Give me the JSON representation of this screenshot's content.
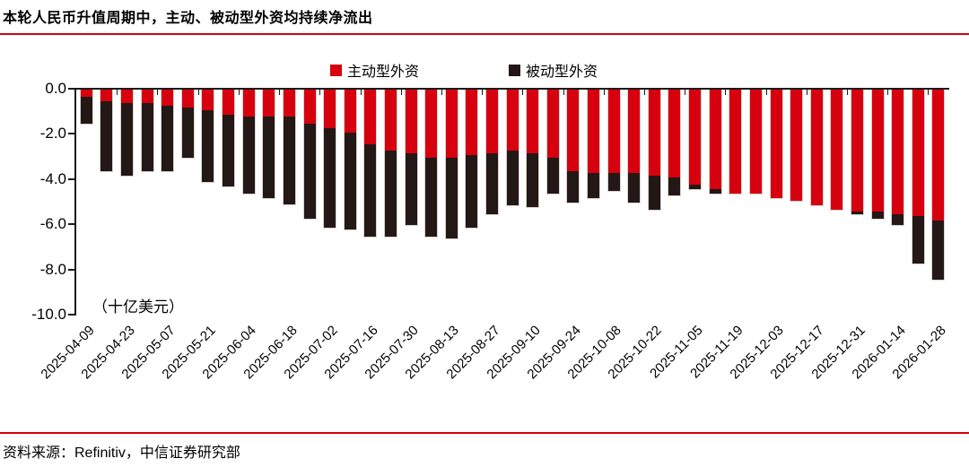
{
  "title": "本轮人民币升值周期中，主动、被动型外资均持续净流出",
  "unit_note": "（十亿美元）",
  "source": "资料来源：Refinitiv，中信证券研究部",
  "accent_color": "#d7000f",
  "legend": [
    {
      "label": "主动型外资",
      "color": "#d7000f"
    },
    {
      "label": "被动型外资",
      "color": "#231815"
    }
  ],
  "chart_data": {
    "type": "bar",
    "stacked": true,
    "title": "本轮人民币升值周期中，主动、被动型外资均持续净流出",
    "ylabel": "（十亿美元）",
    "ylim": [
      -10.0,
      0.0
    ],
    "grid": false,
    "legend_position": "top",
    "ytick_labels": [
      "0.0",
      "-2.0",
      "-4.0",
      "-6.0",
      "-8.0",
      "-10.0"
    ],
    "x": [
      "2025-04-09",
      "2025-04-16",
      "2025-04-23",
      "2025-04-30",
      "2025-05-07",
      "2025-05-14",
      "2025-05-21",
      "2025-05-28",
      "2025-06-04",
      "2025-06-11",
      "2025-06-18",
      "2025-06-25",
      "2025-07-02",
      "2025-07-09",
      "2025-07-16",
      "2025-07-23",
      "2025-07-30",
      "2025-08-06",
      "2025-08-13",
      "2025-08-20",
      "2025-08-27",
      "2025-09-03",
      "2025-09-10",
      "2025-09-17",
      "2025-09-24",
      "2025-10-01",
      "2025-10-08",
      "2025-10-15",
      "2025-10-22",
      "2025-10-29",
      "2025-11-05",
      "2025-11-12",
      "2025-11-19",
      "2025-11-26",
      "2025-12-03",
      "2025-12-10",
      "2025-12-17",
      "2025-12-24",
      "2025-12-31",
      "2026-01-07",
      "2026-01-14",
      "2026-01-21",
      "2026-01-28"
    ],
    "x_tick_labels": [
      "2025-04-09",
      "2025-04-23",
      "2025-05-07",
      "2025-05-21",
      "2025-06-04",
      "2025-06-18",
      "2025-07-02",
      "2025-07-16",
      "2025-07-30",
      "2025-08-13",
      "2025-08-27",
      "2025-09-10",
      "2025-09-24",
      "2025-10-08",
      "2025-10-22",
      "2025-11-05",
      "2025-11-19",
      "2025-12-03",
      "2025-12-17",
      "2025-12-31",
      "2026-01-14",
      "2026-01-28"
    ],
    "x_tick_step": 2,
    "series": [
      {
        "name": "主动型外资",
        "color": "#d7000f",
        "values": [
          -0.3,
          -0.5,
          -0.6,
          -0.6,
          -0.7,
          -0.8,
          -0.9,
          -1.1,
          -1.2,
          -1.2,
          -1.2,
          -1.5,
          -1.7,
          -1.9,
          -2.4,
          -2.7,
          -2.8,
          -3.0,
          -3.0,
          -2.9,
          -2.8,
          -2.7,
          -2.8,
          -3.0,
          -3.6,
          -3.7,
          -3.7,
          -3.7,
          -3.8,
          -3.9,
          -4.2,
          -4.4,
          -4.6,
          -4.6,
          -4.8,
          -4.9,
          -5.1,
          -5.3,
          -5.4,
          -5.4,
          -5.5,
          -5.6,
          -5.8
        ]
      },
      {
        "name": "被动型外资",
        "color": "#231815",
        "values": [
          -1.2,
          -3.1,
          -3.2,
          -3.0,
          -2.9,
          -2.2,
          -3.2,
          -3.2,
          -3.4,
          -3.6,
          -3.9,
          -4.2,
          -4.4,
          -4.3,
          -4.1,
          -3.8,
          -3.2,
          -3.5,
          -3.6,
          -3.2,
          -2.7,
          -2.4,
          -2.4,
          -1.6,
          -1.4,
          -1.1,
          -0.8,
          -1.3,
          -1.5,
          -0.8,
          -0.2,
          -0.2,
          0,
          0,
          0,
          0,
          0,
          0,
          -0.1,
          -0.3,
          -0.5,
          -2.1,
          -2.6
        ]
      }
    ]
  }
}
